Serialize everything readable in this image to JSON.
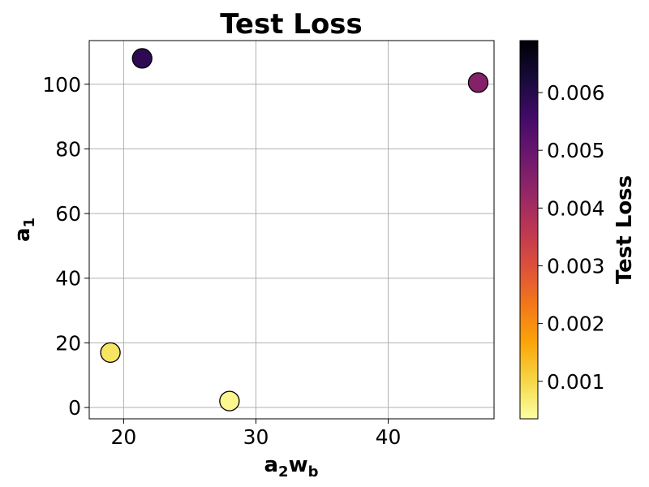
{
  "chart_data": {
    "type": "scatter",
    "title": "Test Loss",
    "xlabel": {
      "main": "a",
      "sub1": "2",
      "mid": "w",
      "sub2": "b"
    },
    "ylabel": {
      "main": "a",
      "sub": "1"
    },
    "xlim": [
      17.4,
      48.0
    ],
    "ylim": [
      -3.5,
      113.5
    ],
    "xticks": [
      20,
      30,
      40
    ],
    "yticks": [
      0,
      20,
      40,
      60,
      80,
      100
    ],
    "grid": true,
    "points": [
      {
        "x": 21.4,
        "y": 108,
        "loss": 0.0059
      },
      {
        "x": 46.8,
        "y": 100.5,
        "loss": 0.0045
      },
      {
        "x": 19.0,
        "y": 17,
        "loss": 0.0008
      },
      {
        "x": 28.0,
        "y": 2,
        "loss": 0.0005
      }
    ],
    "colorbar": {
      "label": "Test Loss",
      "colormap": "inferno_r",
      "range": [
        0.00035,
        0.0069
      ],
      "ticks": [
        0.001,
        0.002,
        0.003,
        0.004,
        0.005,
        0.006
      ],
      "tick_labels": [
        "0.001",
        "0.002",
        "0.003",
        "0.004",
        "0.005",
        "0.006"
      ]
    }
  }
}
